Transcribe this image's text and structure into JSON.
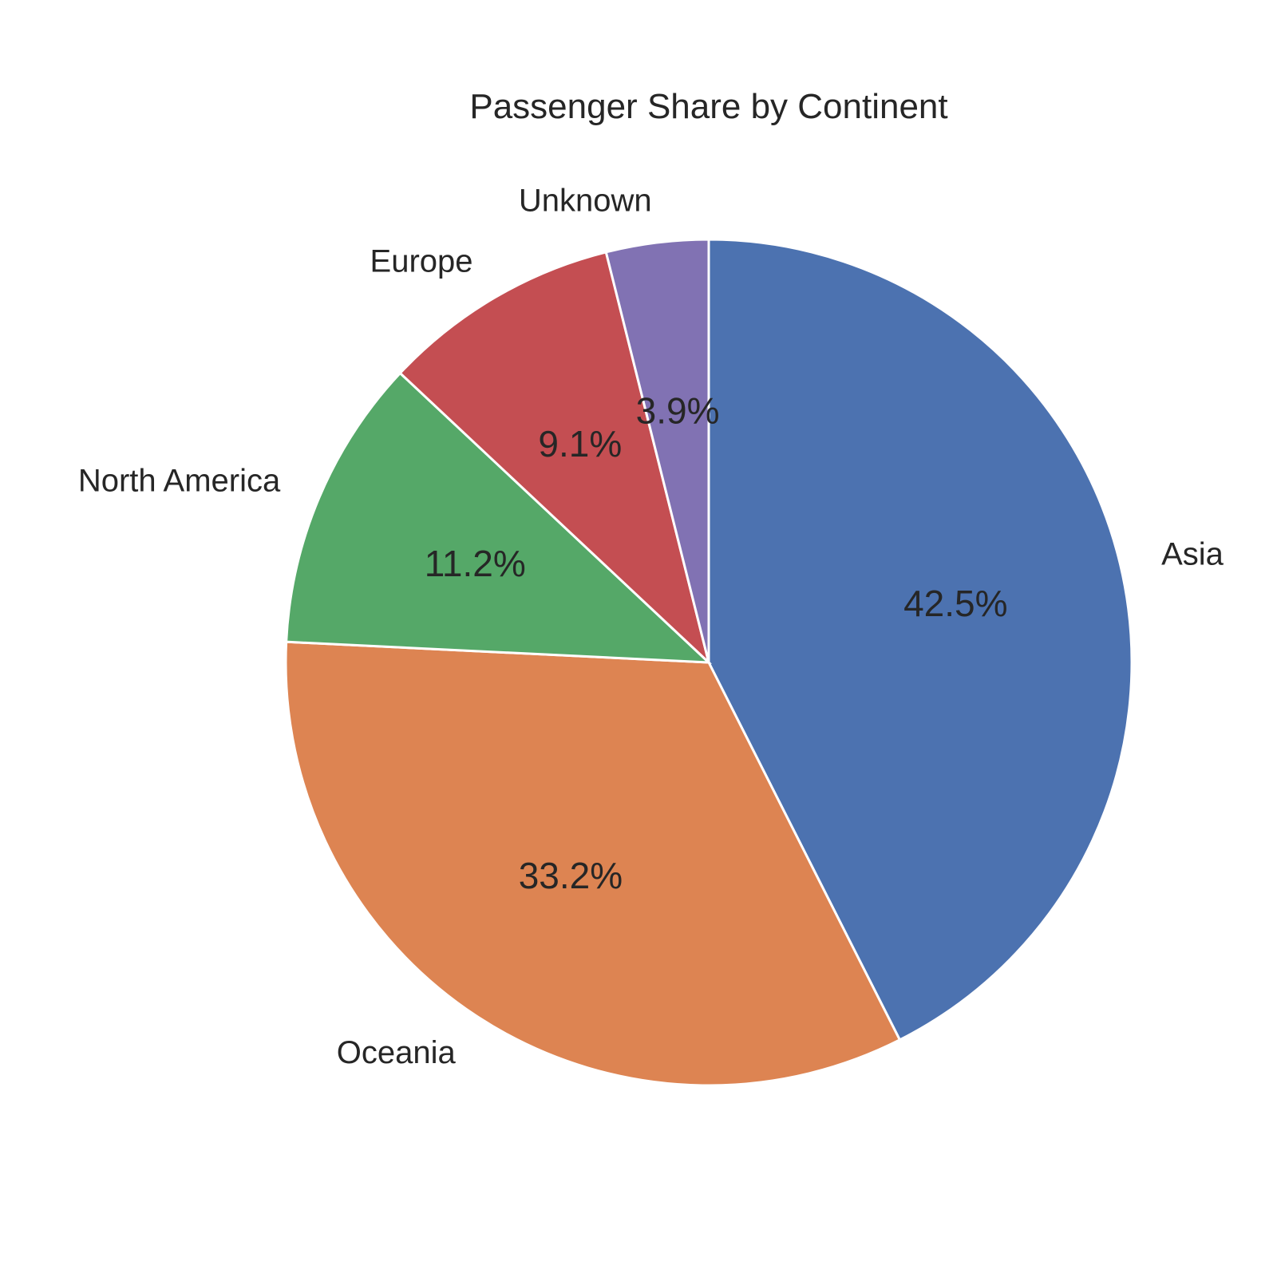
{
  "chart_data": {
    "type": "pie",
    "title": "Passenger Share by Continent",
    "start_angle_deg": 90,
    "direction": "clockwise",
    "slices": [
      {
        "label": "Asia",
        "value": 42.5,
        "pct_label": "42.5%",
        "color": "#4c72b0"
      },
      {
        "label": "Oceania",
        "value": 33.2,
        "pct_label": "33.2%",
        "color": "#dd8452"
      },
      {
        "label": "North America",
        "value": 11.2,
        "pct_label": "11.2%",
        "color": "#55a868"
      },
      {
        "label": "Europe",
        "value": 9.1,
        "pct_label": "9.1%",
        "color": "#c44e52"
      },
      {
        "label": "Unknown",
        "value": 3.9,
        "pct_label": "3.9%",
        "color": "#8172b3"
      }
    ]
  }
}
